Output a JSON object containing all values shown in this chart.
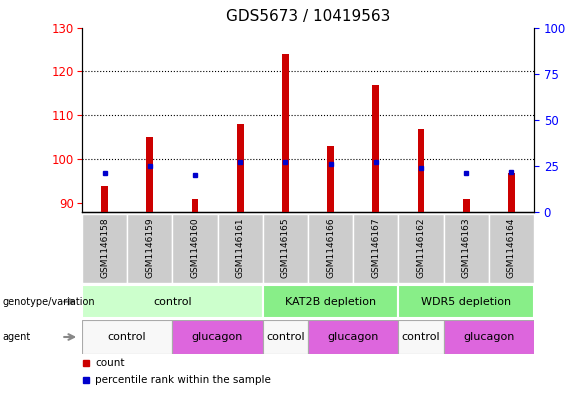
{
  "title": "GDS5673 / 10419563",
  "samples": [
    "GSM1146158",
    "GSM1146159",
    "GSM1146160",
    "GSM1146161",
    "GSM1146165",
    "GSM1146166",
    "GSM1146167",
    "GSM1146162",
    "GSM1146163",
    "GSM1146164"
  ],
  "counts": [
    94,
    105,
    91,
    108,
    124,
    103,
    117,
    107,
    91,
    97
  ],
  "percentiles": [
    21,
    25,
    20,
    27,
    27,
    26,
    27,
    24,
    21,
    22
  ],
  "ylim_left": [
    88,
    130
  ],
  "ylim_right": [
    0,
    100
  ],
  "yticks_left": [
    90,
    100,
    110,
    120,
    130
  ],
  "yticks_right": [
    0,
    25,
    50,
    75,
    100
  ],
  "bar_color": "#cc0000",
  "dot_color": "#0000cc",
  "bar_base": 88,
  "groups": [
    {
      "label": "control",
      "start": 0,
      "end": 4,
      "color": "#ccffcc"
    },
    {
      "label": "KAT2B depletion",
      "start": 4,
      "end": 7,
      "color": "#88ee88"
    },
    {
      "label": "WDR5 depletion",
      "start": 7,
      "end": 10,
      "color": "#88ee88"
    }
  ],
  "agents": [
    {
      "label": "control",
      "start": 0,
      "end": 2,
      "color": "#f8f8f8"
    },
    {
      "label": "glucagon",
      "start": 2,
      "end": 4,
      "color": "#dd66dd"
    },
    {
      "label": "control",
      "start": 4,
      "end": 5,
      "color": "#f8f8f8"
    },
    {
      "label": "glucagon",
      "start": 5,
      "end": 7,
      "color": "#dd66dd"
    },
    {
      "label": "control",
      "start": 7,
      "end": 8,
      "color": "#f8f8f8"
    },
    {
      "label": "glucagon",
      "start": 8,
      "end": 10,
      "color": "#dd66dd"
    }
  ],
  "legend_items": [
    {
      "label": "count",
      "color": "#cc0000"
    },
    {
      "label": "percentile rank within the sample",
      "color": "#0000cc"
    }
  ],
  "grid_yticks": [
    100,
    110,
    120
  ],
  "title_fontsize": 11,
  "sample_col_color": "#cccccc"
}
